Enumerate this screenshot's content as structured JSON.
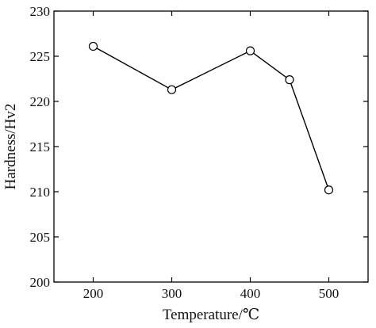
{
  "chart_data": {
    "type": "line",
    "title": "",
    "xlabel": "Temperature/℃",
    "ylabel": "Hardness/Hv2",
    "xlim": [
      150,
      550
    ],
    "ylim": [
      200,
      230
    ],
    "x_ticks": [
      200,
      300,
      400,
      500
    ],
    "y_ticks": [
      200,
      205,
      210,
      215,
      220,
      225,
      230
    ],
    "grid": false,
    "legend": "none",
    "marker": "open-circle",
    "line_color": "#000000",
    "series": [
      {
        "x": [
          200,
          300,
          400,
          450,
          500
        ],
        "values": [
          226.1,
          221.3,
          225.6,
          222.4,
          210.2
        ]
      }
    ]
  }
}
